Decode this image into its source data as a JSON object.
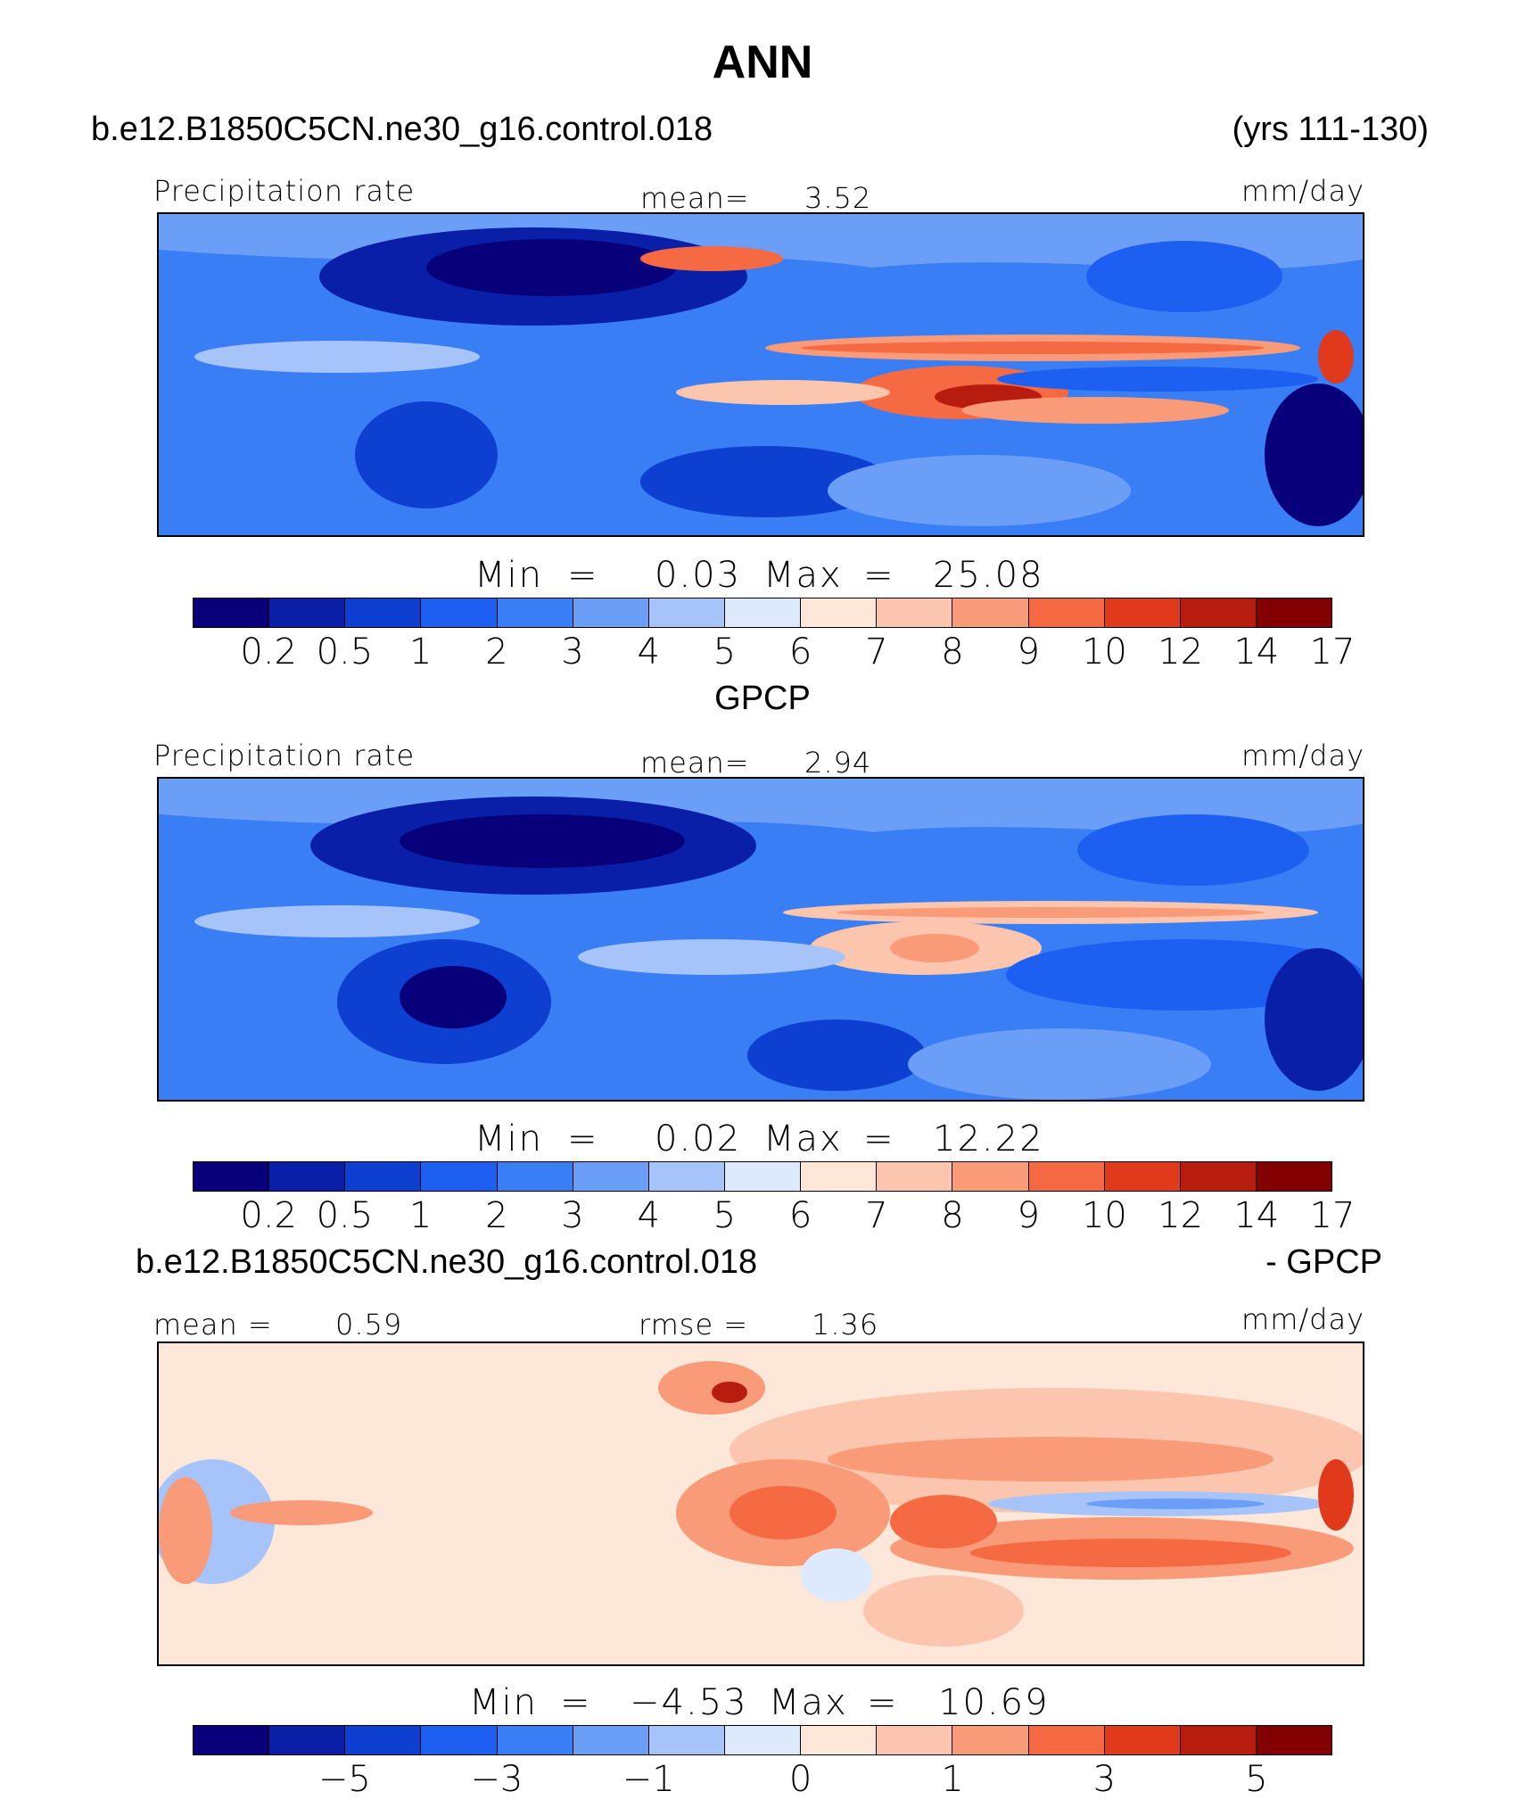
{
  "title": "ANN",
  "colors": [
    "#08007a",
    "#0a1fa8",
    "#0d3fd1",
    "#1d5ff0",
    "#3a7ef5",
    "#6b9ff7",
    "#a6c4fa",
    "#dde9fc",
    "#fde7d8",
    "#fbc6ad",
    "#f99a78",
    "#f56a43",
    "#e0391c",
    "#b81c0e",
    "#820000"
  ],
  "top_panel": {
    "case": "b.e12.B1850C5CN.ne30_g16.control.018",
    "years": "(yrs 111-130)",
    "left_label": "Precipitation rate",
    "mean_label": "mean=",
    "mean_value": "3.52",
    "units": "mm/day",
    "min_label": "Min",
    "min_value": "0.03",
    "max_label": "Max",
    "max_value": "25.08",
    "ticks": [
      "0.2",
      "0.5",
      "1",
      "2",
      "3",
      "4",
      "5",
      "6",
      "7",
      "8",
      "9",
      "10",
      "12",
      "14",
      "17"
    ]
  },
  "middle_panel": {
    "case": "GPCP",
    "left_label": "Precipitation rate",
    "mean_label": "mean=",
    "mean_value": "2.94",
    "units": "mm/day",
    "min_label": "Min",
    "min_value": "0.02",
    "max_label": "Max",
    "max_value": "12.22",
    "ticks": [
      "0.2",
      "0.5",
      "1",
      "2",
      "3",
      "4",
      "5",
      "6",
      "7",
      "8",
      "9",
      "10",
      "12",
      "14",
      "17"
    ]
  },
  "bottom_panel": {
    "case": "b.e12.B1850C5CN.ne30_g16.control.018",
    "case_suffix": "- GPCP",
    "mean_label": "mean =",
    "mean_value": "0.59",
    "rmse_label": "rmse =",
    "rmse_value": "1.36",
    "units": "mm/day",
    "min_label": "Min",
    "min_value": "−4.53",
    "max_label": "Max",
    "max_value": "10.69",
    "ticks": [
      "−5",
      "−3",
      "−1",
      "0",
      "1",
      "3",
      "5"
    ]
  }
}
